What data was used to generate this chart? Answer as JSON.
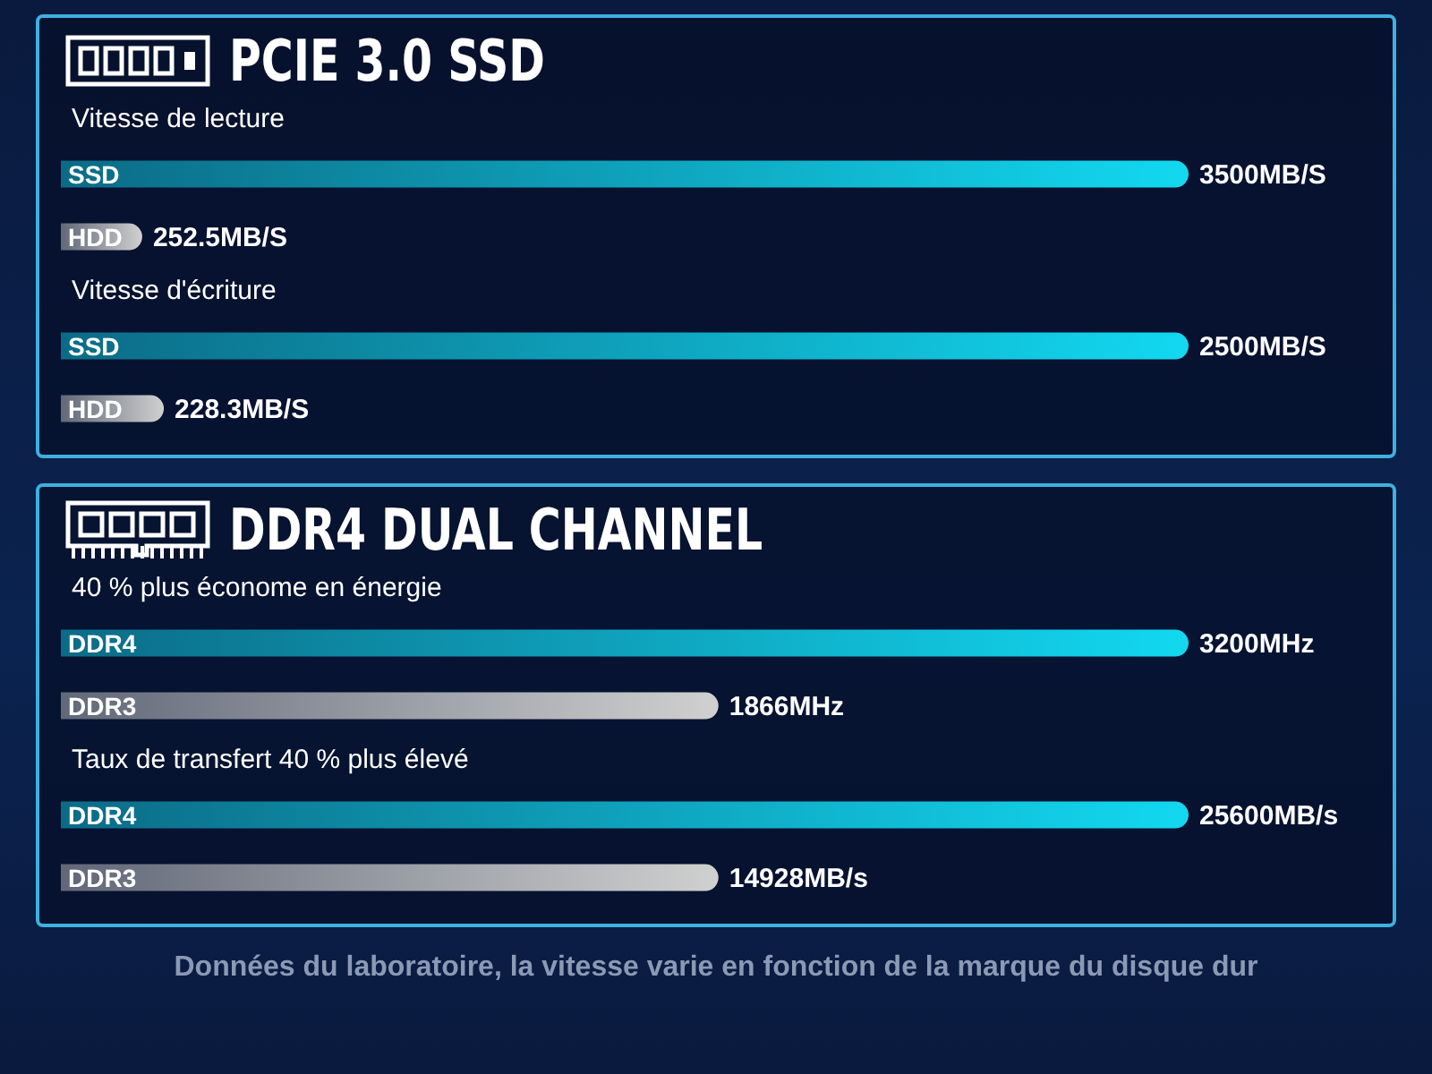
{
  "chart_data": [
    {
      "type": "bar",
      "orientation": "horizontal",
      "title": "PCIE 3.0 SSD",
      "subtitle": "Vitesse de lecture",
      "categories": [
        "SSD",
        "HDD"
      ],
      "values": [
        3500,
        252.5
      ],
      "colors": [
        "#12d8f0",
        "#d0d0d0"
      ],
      "value_labels": [
        "3500MB/S",
        "252.5MB/S"
      ],
      "grid": false,
      "legend": false
    },
    {
      "type": "bar",
      "orientation": "horizontal",
      "title": "Vitesse d'écriture",
      "categories": [
        "SSD",
        "HDD"
      ],
      "values": [
        2500,
        228.3
      ],
      "colors": [
        "#12d8f0",
        "#d0d0d0"
      ],
      "value_labels": [
        "2500MB/S",
        "228.3MB/S"
      ],
      "grid": false,
      "legend": false
    },
    {
      "type": "bar",
      "orientation": "horizontal",
      "title": "DDR4 DUAL CHANNEL",
      "subtitle": "40 % plus économe en énergie",
      "categories": [
        "DDR4",
        "DDR3"
      ],
      "values": [
        3200,
        1866
      ],
      "colors": [
        "#12d8f0",
        "#d0d0d0"
      ],
      "value_labels": [
        "3200MHz",
        "1866MHz"
      ],
      "grid": false,
      "legend": false
    },
    {
      "type": "bar",
      "orientation": "horizontal",
      "title": "Taux de transfert 40 % plus élevé",
      "categories": [
        "DDR4",
        "DDR3"
      ],
      "values": [
        25600,
        14928
      ],
      "colors": [
        "#12d8f0",
        "#d0d0d0"
      ],
      "value_labels": [
        "25600MB/s",
        "14928MB/s"
      ],
      "grid": false,
      "legend": false,
      "annotations": [
        "Données du laboratoire, la vitesse varie en fonction de la marque du disque dur"
      ]
    }
  ]
}
